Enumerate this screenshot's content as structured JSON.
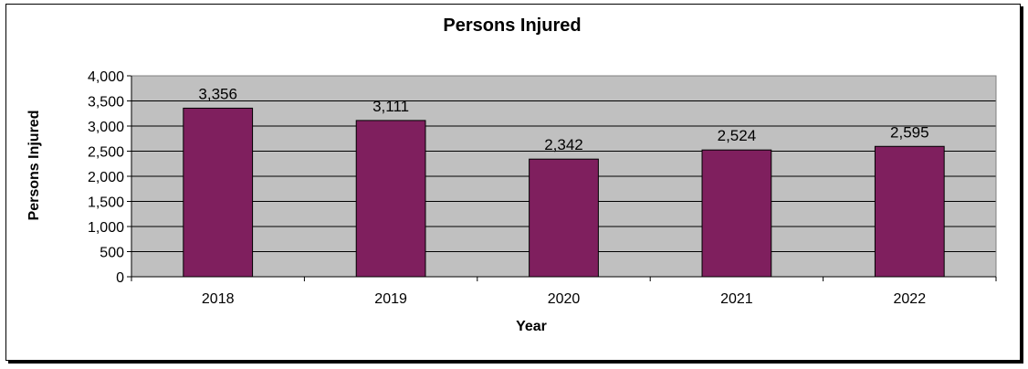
{
  "chart_data": {
    "type": "bar",
    "title": "Persons Injured",
    "xlabel": "Year",
    "ylabel": "Persons Injured",
    "categories": [
      "2018",
      "2019",
      "2020",
      "2021",
      "2022"
    ],
    "values": [
      3356,
      3111,
      2342,
      2524,
      2595
    ],
    "data_labels": [
      "3,356",
      "3,111",
      "2,342",
      "2,524",
      "2,595"
    ],
    "ylim": [
      0,
      4000
    ],
    "yticks": [
      0,
      500,
      1000,
      1500,
      2000,
      2500,
      3000,
      3500,
      4000
    ],
    "ytick_labels": [
      "0",
      "500",
      "1,000",
      "1,500",
      "2,000",
      "2,500",
      "3,000",
      "3,500",
      "4,000"
    ],
    "grid": true,
    "legend": false,
    "colors": {
      "bar": "#7f1f5e",
      "plot_background": "#c0c0c0",
      "gridline": "#000000"
    }
  }
}
